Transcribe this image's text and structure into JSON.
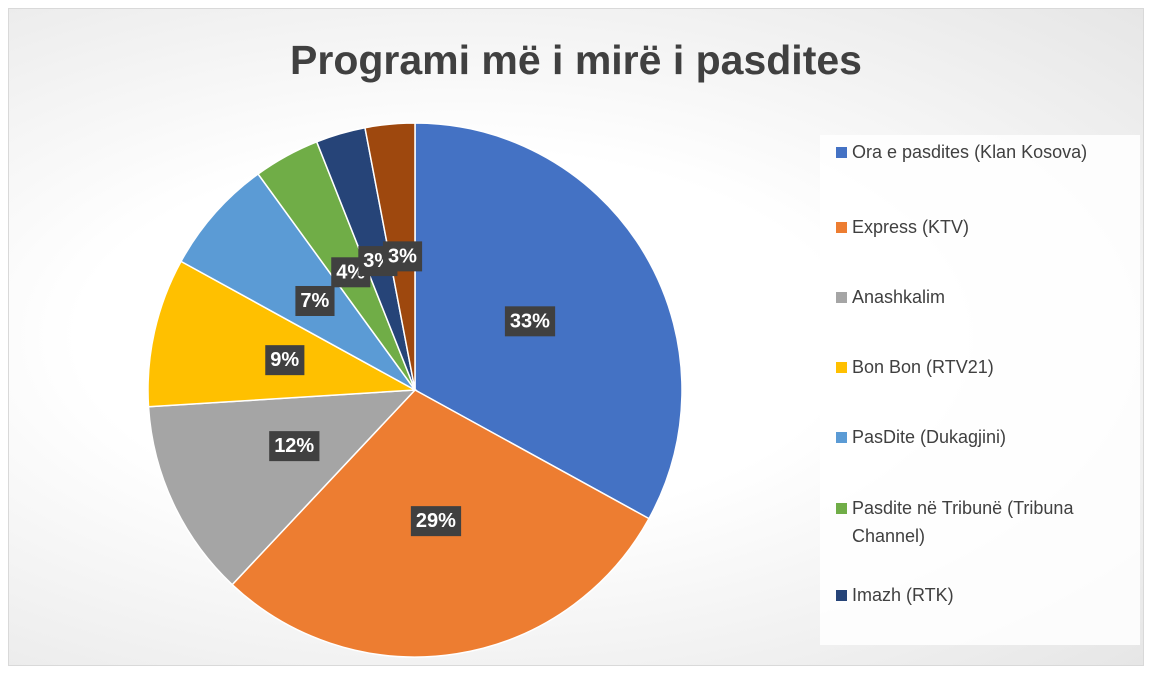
{
  "chart_data": {
    "type": "pie",
    "title": "Programi më i mirë i pasdites",
    "categories": [
      "Ora e pasdites (Klan Kosova)",
      "Express (KTV)",
      "Anashkalim",
      "Bon Bon (RTV21)",
      "PasDite (Dukagjini)",
      "Pasdite në Tribunë (Tribuna Channel)",
      "Imazh (RTK)",
      null
    ],
    "values": [
      33,
      29,
      12,
      9,
      7,
      4,
      3,
      3
    ],
    "value_labels": [
      "33%",
      "29%",
      "12%",
      "9%",
      "7%",
      "4%",
      "3%",
      "3%"
    ],
    "colors": [
      "#4472c4",
      "#ed7d31",
      "#a5a5a5",
      "#ffc000",
      "#5b9bd5",
      "#70ad47",
      "#264478",
      "#9e480e"
    ],
    "legend": "right"
  }
}
